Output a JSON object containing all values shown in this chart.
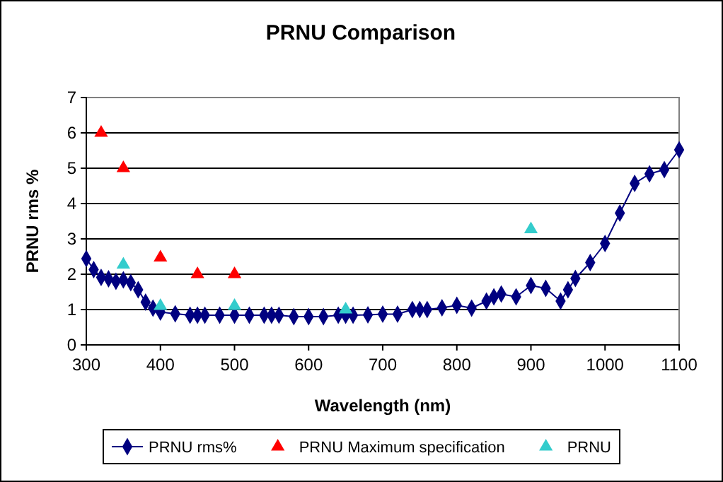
{
  "chart_data": {
    "type": "line",
    "title": "PRNU Comparison",
    "xlabel": "Wavelength (nm)",
    "ylabel": "PRNU rms %",
    "xlim": [
      300,
      1100
    ],
    "xticks": [
      300,
      400,
      500,
      600,
      700,
      800,
      900,
      1000,
      1100
    ],
    "ylim": [
      0,
      7
    ],
    "yticks": [
      0,
      1,
      2,
      3,
      4,
      5,
      6,
      7
    ],
    "grid": "y",
    "legend": "bottom",
    "series": [
      {
        "name": "PRNU rms%",
        "marker": "diamond",
        "color": "#000080",
        "x": [
          300,
          310,
          320,
          330,
          340,
          350,
          360,
          370,
          380,
          390,
          400,
          420,
          440,
          450,
          460,
          480,
          500,
          520,
          540,
          550,
          560,
          580,
          600,
          620,
          640,
          650,
          660,
          680,
          700,
          720,
          740,
          750,
          760,
          780,
          800,
          820,
          840,
          850,
          860,
          880,
          900,
          920,
          940,
          950,
          960,
          980,
          1000,
          1020,
          1040,
          1060,
          1080,
          1100
        ],
        "values": [
          2.44,
          2.13,
          1.91,
          1.87,
          1.8,
          1.84,
          1.76,
          1.56,
          1.21,
          1.04,
          0.93,
          0.88,
          0.84,
          0.84,
          0.84,
          0.84,
          0.84,
          0.84,
          0.84,
          0.84,
          0.84,
          0.8,
          0.8,
          0.8,
          0.84,
          0.84,
          0.84,
          0.85,
          0.87,
          0.87,
          1.0,
          1.0,
          1.0,
          1.05,
          1.12,
          1.04,
          1.24,
          1.36,
          1.44,
          1.36,
          1.68,
          1.6,
          1.24,
          1.56,
          1.88,
          2.33,
          2.87,
          3.73,
          4.57,
          4.84,
          4.96,
          5.52
        ]
      },
      {
        "name": "PRNU Maximum specification",
        "type": "scatter",
        "marker": "triangle",
        "color": "#ff0000",
        "x": [
          320,
          350,
          400,
          450,
          500
        ],
        "values": [
          6.0,
          5.0,
          2.47,
          2.0,
          2.0
        ]
      },
      {
        "name": "PRNU",
        "type": "scatter",
        "marker": "triangle",
        "color": "#33cccc",
        "x": [
          350,
          400,
          500,
          650,
          900
        ],
        "values": [
          2.27,
          1.1,
          1.1,
          1.0,
          3.27
        ]
      }
    ]
  }
}
